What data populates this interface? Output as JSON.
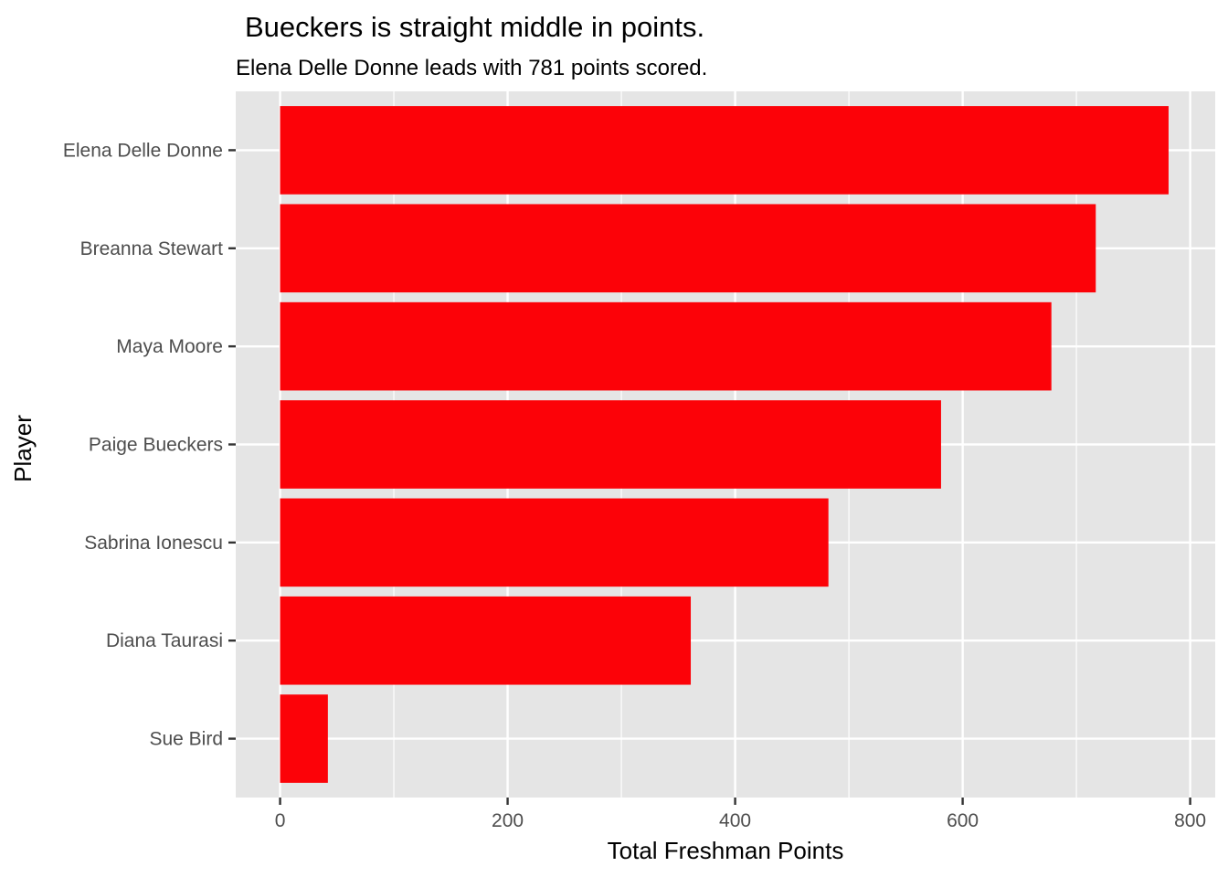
{
  "chart_data": {
    "type": "bar",
    "orientation": "horizontal",
    "title": "Bueckers is straight middle in points.",
    "subtitle": "Elena Delle Donne leads with 781 points scored.",
    "xlabel": "Total Freshman Points",
    "ylabel": "Player",
    "categories": [
      "Elena Delle Donne",
      "Breanna Stewart",
      "Maya Moore",
      "Paige Bueckers",
      "Sabrina Ionescu",
      "Diana Taurasi",
      "Sue Bird"
    ],
    "values": [
      781,
      717,
      678,
      581,
      482,
      361,
      42
    ],
    "xlim": [
      -39,
      822
    ],
    "xticks": [
      0,
      200,
      400,
      600,
      800
    ],
    "grid": true,
    "bar_color": "#fc0208",
    "panel_color": "#e5e5e5",
    "grid_color": "#ffffff"
  }
}
